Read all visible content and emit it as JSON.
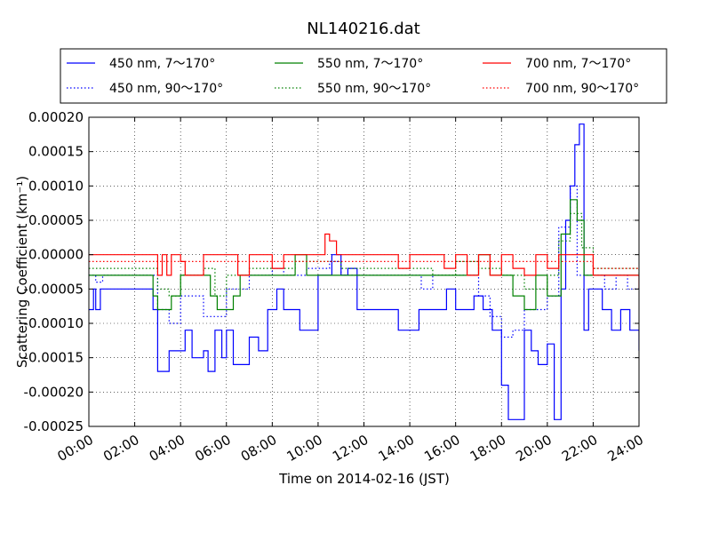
{
  "chart_data": {
    "type": "line",
    "title": "NL140216.dat",
    "xlabel": "Time on 2014-02-16 (JST)",
    "ylabel": "Scattering Coefficient (km⁻¹)",
    "xlim": [
      0,
      24
    ],
    "ylim": [
      -0.00025,
      0.0002
    ],
    "grid": true,
    "legend_position": "top",
    "x_ticks": [
      "00:00",
      "02:00",
      "04:00",
      "06:00",
      "08:00",
      "10:00",
      "12:00",
      "14:00",
      "16:00",
      "18:00",
      "20:00",
      "22:00",
      "24:00"
    ],
    "y_ticks": [
      "0.00020",
      "0.00015",
      "0.00010",
      "0.00005",
      "0.00000",
      "-0.00005",
      "-0.00010",
      "-0.00015",
      "-0.00020",
      "-0.00025"
    ],
    "series": [
      {
        "name": "450 nm, 7～170°",
        "color": "#0000ff",
        "style": "solid",
        "x": [
          0.0,
          0.1,
          0.2,
          0.3,
          0.4,
          0.5,
          0.6,
          0.7,
          0.8,
          0.9,
          1.0,
          1.5,
          2.0,
          2.5,
          2.8,
          3.0,
          3.2,
          3.5,
          4.0,
          4.2,
          4.5,
          5.0,
          5.2,
          5.5,
          5.8,
          6.0,
          6.3,
          6.6,
          7.0,
          7.4,
          7.8,
          8.2,
          8.5,
          8.8,
          9.2,
          9.5,
          10.0,
          10.3,
          10.6,
          11.0,
          11.3,
          11.7,
          12.0,
          12.5,
          13.0,
          13.5,
          14.0,
          14.4,
          14.8,
          15.2,
          15.6,
          16.0,
          16.4,
          16.8,
          17.2,
          17.6,
          18.0,
          18.3,
          18.6,
          19.0,
          19.3,
          19.6,
          20.0,
          20.3,
          20.6,
          20.8,
          21.0,
          21.2,
          21.4,
          21.6,
          21.8,
          22.0,
          22.4,
          22.8,
          23.2,
          23.6,
          24.0
        ],
        "y": [
          -8e-05,
          -8e-05,
          -5e-05,
          -8e-05,
          -8e-05,
          -5e-05,
          -5e-05,
          -5e-05,
          -5e-05,
          -5e-05,
          -5e-05,
          -5e-05,
          -5e-05,
          -5e-05,
          -8e-05,
          -0.00017,
          -0.00017,
          -0.00014,
          -0.00014,
          -0.00011,
          -0.00015,
          -0.00014,
          -0.00017,
          -0.00011,
          -0.00015,
          -0.00011,
          -0.00016,
          -0.00016,
          -0.00012,
          -0.00014,
          -8e-05,
          -5e-05,
          -8e-05,
          -8e-05,
          -0.00011,
          -0.00011,
          -3e-05,
          -3e-05,
          0.0,
          -3e-05,
          -2e-05,
          -8e-05,
          -8e-05,
          -8e-05,
          -8e-05,
          -0.00011,
          -0.00011,
          -8e-05,
          -8e-05,
          -8e-05,
          -5e-05,
          -8e-05,
          -8e-05,
          -6e-05,
          -8e-05,
          -0.00011,
          -0.00019,
          -0.00024,
          -0.00024,
          -0.00011,
          -0.00014,
          -0.00016,
          -0.00013,
          -0.00024,
          -5e-05,
          5e-05,
          0.0001,
          0.00016,
          0.00019,
          -0.00011,
          -5e-05,
          -5e-05,
          -8e-05,
          -0.00011,
          -8e-05,
          -0.00011,
          -0.00014
        ]
      },
      {
        "name": "450 nm, 90～170°",
        "color": "#0000ff",
        "style": "dotted",
        "x": [
          0.0,
          0.3,
          0.6,
          1.0,
          1.5,
          2.0,
          2.5,
          3.0,
          3.5,
          4.0,
          4.5,
          5.0,
          5.5,
          6.0,
          6.5,
          7.0,
          7.5,
          8.0,
          8.5,
          9.0,
          9.5,
          10.0,
          10.5,
          11.0,
          11.5,
          12.0,
          12.5,
          13.0,
          13.5,
          14.0,
          14.5,
          15.0,
          15.5,
          16.0,
          16.5,
          17.0,
          17.5,
          18.0,
          18.5,
          19.0,
          19.5,
          20.0,
          20.5,
          21.0,
          21.3,
          21.6,
          22.0,
          22.5,
          23.0,
          23.5,
          24.0
        ],
        "y": [
          -3e-05,
          -4e-05,
          -3e-05,
          -3e-05,
          -3e-05,
          -3e-05,
          -3e-05,
          -8e-05,
          -0.0001,
          -6e-05,
          -6e-05,
          -9e-05,
          -9e-05,
          -5e-05,
          -5e-05,
          -3e-05,
          -3e-05,
          -2e-05,
          -3e-05,
          -3e-05,
          -2e-05,
          -2e-05,
          -1e-05,
          -3e-05,
          -3e-05,
          -3e-05,
          -3e-05,
          -3e-05,
          -3e-05,
          -3e-05,
          -5e-05,
          -3e-05,
          -3e-05,
          -3e-05,
          -3e-05,
          -6e-05,
          -9e-05,
          -0.00012,
          -0.00011,
          -8e-05,
          -8e-05,
          -6e-05,
          4e-05,
          0.0001,
          -3e-05,
          -3e-05,
          -3e-05,
          -5e-05,
          -3e-05,
          -5e-05,
          -5e-05
        ]
      },
      {
        "name": "550 nm, 7～170°",
        "color": "#008000",
        "style": "solid",
        "x": [
          0.0,
          0.5,
          1.0,
          1.5,
          2.0,
          2.5,
          2.8,
          3.0,
          3.3,
          3.6,
          4.0,
          4.5,
          5.0,
          5.3,
          5.6,
          6.0,
          6.3,
          6.6,
          7.0,
          7.5,
          8.0,
          8.5,
          9.0,
          9.5,
          10.0,
          10.5,
          11.0,
          11.5,
          12.0,
          12.5,
          13.0,
          13.5,
          14.0,
          14.5,
          15.0,
          15.5,
          16.0,
          16.5,
          17.0,
          17.5,
          18.0,
          18.5,
          19.0,
          19.5,
          20.0,
          20.3,
          20.6,
          20.8,
          21.0,
          21.3,
          21.6,
          22.0,
          22.5,
          23.0,
          23.5,
          24.0
        ],
        "y": [
          -3e-05,
          -3e-05,
          -3e-05,
          -3e-05,
          -3e-05,
          -3e-05,
          -6e-05,
          -8e-05,
          -8e-05,
          -6e-05,
          -3e-05,
          -3e-05,
          -3e-05,
          -6e-05,
          -8e-05,
          -8e-05,
          -6e-05,
          -3e-05,
          -3e-05,
          -3e-05,
          -3e-05,
          -3e-05,
          0.0,
          -3e-05,
          -3e-05,
          -3e-05,
          -3e-05,
          -3e-05,
          -3e-05,
          -3e-05,
          -3e-05,
          -3e-05,
          -3e-05,
          -3e-05,
          -3e-05,
          -3e-05,
          -3e-05,
          -3e-05,
          0.0,
          -3e-05,
          -3e-05,
          -6e-05,
          -8e-05,
          -3e-05,
          -6e-05,
          -6e-05,
          3e-05,
          3e-05,
          8e-05,
          5e-05,
          -3e-05,
          -3e-05,
          -3e-05,
          -3e-05,
          -3e-05,
          -3e-05
        ]
      },
      {
        "name": "550 nm, 90～170°",
        "color": "#008000",
        "style": "dotted",
        "x": [
          0.0,
          1.0,
          2.0,
          3.0,
          3.5,
          4.0,
          5.0,
          5.5,
          6.0,
          7.0,
          8.0,
          9.0,
          10.0,
          11.0,
          12.0,
          13.0,
          14.0,
          15.0,
          16.0,
          17.0,
          18.0,
          19.0,
          20.0,
          20.5,
          21.0,
          21.5,
          22.0,
          23.0,
          24.0
        ],
        "y": [
          -2e-05,
          -2e-05,
          -2e-05,
          -5e-05,
          -6e-05,
          -3e-05,
          -2e-05,
          -6e-05,
          -3e-05,
          -2e-05,
          -2e-05,
          -1e-05,
          -1e-05,
          -2e-05,
          -2e-05,
          -2e-05,
          -2e-05,
          -3e-05,
          -1e-05,
          -2e-05,
          -3e-05,
          -5e-05,
          -3e-05,
          2e-05,
          6e-05,
          1e-05,
          -2e-05,
          -2e-05,
          -3e-05
        ]
      },
      {
        "name": "700 nm, 7～170°",
        "color": "#ff0000",
        "style": "solid",
        "x": [
          0.0,
          1.0,
          2.0,
          2.8,
          3.0,
          3.2,
          3.4,
          3.6,
          3.8,
          4.0,
          4.2,
          4.5,
          4.8,
          5.0,
          5.2,
          6.0,
          6.5,
          7.0,
          7.5,
          8.0,
          8.5,
          9.0,
          9.5,
          10.0,
          10.3,
          10.5,
          10.8,
          11.0,
          11.5,
          12.0,
          12.5,
          13.0,
          13.5,
          14.0,
          14.5,
          15.0,
          15.5,
          16.0,
          16.5,
          17.0,
          17.5,
          18.0,
          18.5,
          19.0,
          19.5,
          20.0,
          20.5,
          21.0,
          21.5,
          22.0,
          22.5,
          23.0,
          23.5,
          24.0
        ],
        "y": [
          0.0,
          0.0,
          0.0,
          0.0,
          -3e-05,
          0.0,
          -3e-05,
          0.0,
          0.0,
          -1e-05,
          -3e-05,
          -3e-05,
          -3e-05,
          0.0,
          0.0,
          0.0,
          -3e-05,
          0.0,
          0.0,
          -2e-05,
          0.0,
          0.0,
          0.0,
          0.0,
          3e-05,
          2e-05,
          0.0,
          0.0,
          0.0,
          0.0,
          0.0,
          0.0,
          -2e-05,
          0.0,
          0.0,
          0.0,
          -2e-05,
          0.0,
          -3e-05,
          0.0,
          -3e-05,
          0.0,
          -2e-05,
          -3e-05,
          0.0,
          -2e-05,
          0.0,
          0.0,
          0.0,
          -3e-05,
          -3e-05,
          -3e-05,
          -3e-05,
          -5e-05
        ]
      },
      {
        "name": "700 nm, 90～170°",
        "color": "#ff0000",
        "style": "dotted",
        "x": [
          0.0,
          2.0,
          4.0,
          6.0,
          8.0,
          10.0,
          12.0,
          14.0,
          16.0,
          18.0,
          20.0,
          22.0,
          24.0
        ],
        "y": [
          -1e-05,
          -1e-05,
          -1e-05,
          -1e-05,
          -1e-05,
          -1e-05,
          -1e-05,
          -1e-05,
          -1e-05,
          -1e-05,
          -1e-05,
          -2e-05,
          -2e-05
        ]
      }
    ]
  }
}
